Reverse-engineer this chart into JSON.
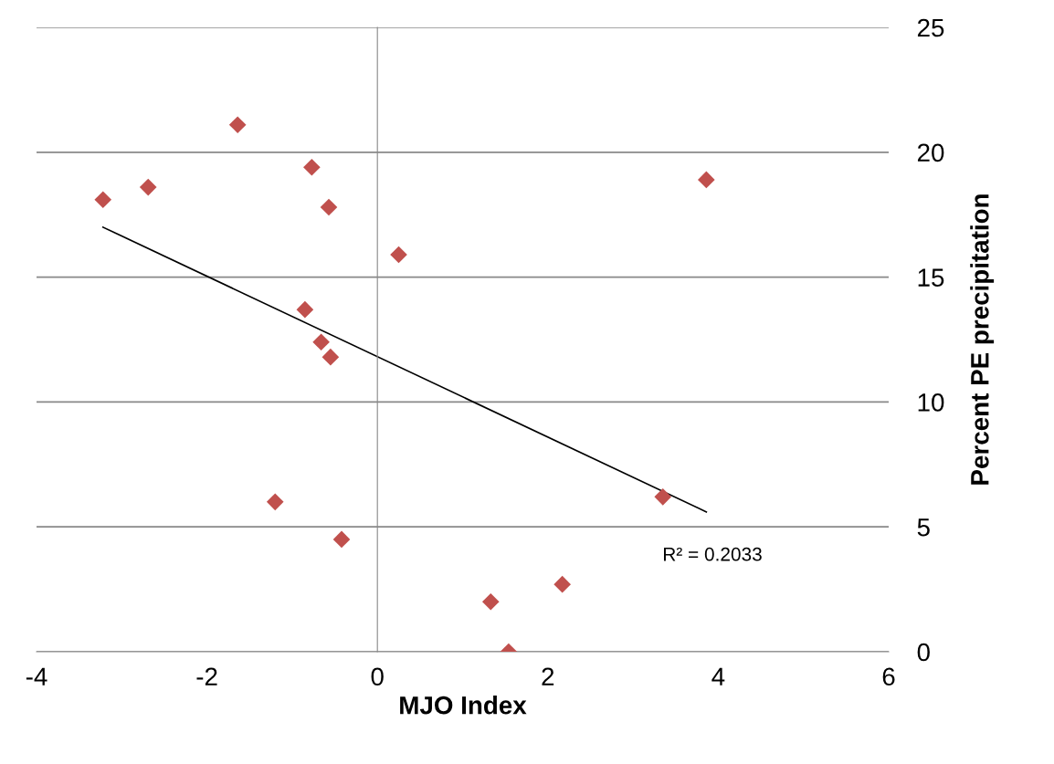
{
  "chart_data": {
    "type": "scatter",
    "xlabel": "MJO Index",
    "ylabel": "Percent PE precipitation",
    "xlim": [
      -4,
      6
    ],
    "xticks": [
      -4,
      -2,
      0,
      2,
      4,
      6
    ],
    "ylim": [
      0,
      25
    ],
    "yticks": [
      0,
      5,
      10,
      15,
      20,
      25
    ],
    "grid": "y",
    "marker": "diamond",
    "series": [
      {
        "color": "#c0504d",
        "x": [
          -3.22,
          -2.69,
          -1.64,
          -0.77,
          -0.57,
          0.25,
          -0.85,
          -0.66,
          -0.55,
          -1.2,
          -0.42,
          1.33,
          2.17,
          1.54,
          3.35,
          3.86
        ],
        "values": [
          18.1,
          18.6,
          21.1,
          19.4,
          17.8,
          15.9,
          13.7,
          12.4,
          11.8,
          6.0,
          4.5,
          2.0,
          2.7,
          0.0,
          6.2,
          18.9
        ]
      },
      {
        "type": "line",
        "color": "#000000",
        "marker": "none",
        "x": [
          -3.22,
          3.86
        ],
        "values": [
          17.0,
          5.6
        ]
      }
    ],
    "annotations": [
      "R² = 0.2033"
    ]
  }
}
